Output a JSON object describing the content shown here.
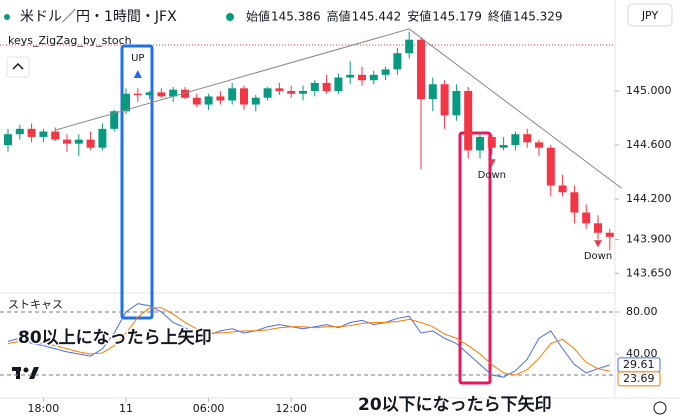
{
  "chart_data": {
    "type": "candlestick",
    "title": "米ドル／円・1時間・JFX",
    "ohlc": [
      {
        "label": "始値",
        "value": 145.386
      },
      {
        "label": "高値",
        "value": 145.442
      },
      {
        "label": "安値",
        "value": 145.179
      },
      {
        "label": "終値",
        "value": 145.329
      }
    ],
    "currency": "JPY",
    "indicator_name": "keys_ZigZag_by_stoch",
    "up_color": "#089981",
    "down_color": "#f23645",
    "open": [
      144.6,
      144.68,
      144.72,
      144.66,
      144.7,
      144.64,
      144.61,
      144.64,
      144.58,
      144.72,
      144.85,
      144.98,
      144.97,
      144.99,
      144.96,
      145.01,
      144.95,
      144.9,
      144.96,
      144.93,
      145.02,
      144.9,
      144.95,
      145.02,
      145.0,
      144.98,
      145.0,
      145.06,
      145.0,
      145.1,
      145.12,
      145.08,
      145.12,
      145.16,
      145.28,
      145.38,
      144.94,
      145.05,
      144.82,
      145.0,
      144.56,
      144.66,
      144.58,
      144.6,
      144.68,
      144.62,
      144.58,
      144.3,
      144.25,
      144.1,
      144.02,
      143.95
    ],
    "high": [
      144.72,
      144.75,
      144.76,
      144.72,
      144.73,
      144.68,
      144.68,
      144.7,
      144.76,
      144.86,
      145.02,
      145.02,
      145.0,
      145.02,
      145.03,
      145.03,
      144.98,
      144.98,
      145.0,
      145.06,
      145.04,
      144.97,
      145.03,
      145.06,
      145.04,
      145.04,
      145.08,
      145.12,
      145.13,
      145.22,
      145.18,
      145.15,
      145.18,
      145.32,
      145.44,
      145.4,
      145.1,
      145.08,
      145.05,
      145.03,
      144.7,
      144.68,
      144.66,
      144.7,
      144.72,
      144.64,
      144.6,
      144.38,
      144.3,
      144.16,
      144.08,
      143.98
    ],
    "low": [
      144.55,
      144.64,
      144.62,
      144.62,
      144.63,
      144.55,
      144.52,
      144.56,
      144.56,
      144.7,
      144.83,
      144.92,
      144.94,
      144.95,
      144.92,
      144.94,
      144.88,
      144.86,
      144.9,
      144.9,
      144.86,
      144.85,
      144.93,
      144.97,
      144.95,
      144.93,
      144.96,
      144.98,
      144.98,
      145.05,
      145.04,
      145.05,
      145.08,
      145.12,
      145.24,
      144.42,
      144.85,
      144.72,
      144.78,
      144.5,
      144.5,
      144.53,
      144.56,
      144.56,
      144.58,
      144.52,
      144.22,
      144.22,
      144.02,
      143.98,
      143.9,
      143.82
    ],
    "close": [
      144.68,
      144.72,
      144.66,
      144.7,
      144.64,
      144.61,
      144.64,
      144.58,
      144.72,
      144.85,
      144.98,
      144.97,
      144.99,
      144.96,
      145.01,
      144.95,
      144.9,
      144.96,
      144.93,
      145.02,
      144.9,
      144.95,
      145.02,
      145.0,
      144.98,
      145.0,
      145.06,
      145.0,
      145.1,
      145.12,
      145.08,
      145.12,
      145.16,
      145.28,
      145.38,
      144.94,
      145.05,
      144.82,
      145.0,
      144.56,
      144.66,
      144.58,
      144.6,
      144.68,
      144.62,
      144.58,
      144.3,
      144.25,
      144.1,
      144.02,
      143.95,
      143.92
    ],
    "ylim": [
      143.526,
      145.452
    ],
    "yticks": [
      {
        "value": 145,
        "label": "145.000"
      },
      {
        "value": 144.6,
        "label": "144.600"
      },
      {
        "value": 144.2,
        "label": "144.200"
      },
      {
        "value": 143.9,
        "label": "143.900"
      },
      {
        "value": 143.65,
        "label": "143.650"
      }
    ],
    "xticks": [
      {
        "value": 3,
        "label": "18:00"
      },
      {
        "value": 10,
        "label": "11"
      },
      {
        "value": 17,
        "label": "06:00"
      },
      {
        "value": 24,
        "label": "12:00"
      }
    ],
    "zigzag": {
      "x": [
        4,
        34,
        52
      ],
      "values": [
        144.71,
        145.46,
        144.28
      ],
      "color": "#888888"
    },
    "markers": [
      {
        "x": 11,
        "label": "UP",
        "direction": "up",
        "color": "#2962ff"
      },
      {
        "x": 41,
        "label": "Down",
        "direction": "down",
        "color": "#e53950"
      },
      {
        "x": 50,
        "label": "Down",
        "direction": "down",
        "color": "#e53950"
      }
    ],
    "stochastic": {
      "title": "ストキャス",
      "ylim": [
        0,
        100
      ],
      "yticks": [
        {
          "value": 80,
          "label": "80.00"
        },
        {
          "value": 40,
          "label": "40.00"
        }
      ],
      "bands": [
        80,
        20
      ],
      "series": [
        {
          "name": "%K",
          "color": "#4a6fe3",
          "values": [
            52,
            55,
            50,
            48,
            45,
            42,
            40,
            38,
            45,
            60,
            80,
            88,
            86,
            80,
            70,
            65,
            60,
            58,
            62,
            64,
            60,
            62,
            66,
            68,
            66,
            64,
            66,
            68,
            65,
            70,
            72,
            68,
            70,
            74,
            76,
            60,
            62,
            55,
            50,
            40,
            30,
            20,
            18,
            24,
            35,
            55,
            62,
            45,
            30,
            22,
            26,
            29.61
          ]
        },
        {
          "name": "%D",
          "color": "#f57c00",
          "values": [
            50,
            52,
            52,
            50,
            48,
            45,
            42,
            40,
            41,
            48,
            60,
            75,
            84,
            84,
            78,
            70,
            64,
            60,
            60,
            61,
            62,
            62,
            63,
            65,
            66,
            66,
            65,
            66,
            66,
            67,
            69,
            70,
            70,
            71,
            73,
            70,
            66,
            59,
            55,
            48,
            40,
            30,
            22,
            20,
            25,
            36,
            50,
            54,
            45,
            32,
            26,
            23.69
          ]
        }
      ]
    },
    "annotations": [
      {
        "text": "80以上になったら上矢印",
        "color": "#1f6fe0"
      },
      {
        "text": "20以下になったら下矢印",
        "color": "#e8175d"
      }
    ]
  }
}
